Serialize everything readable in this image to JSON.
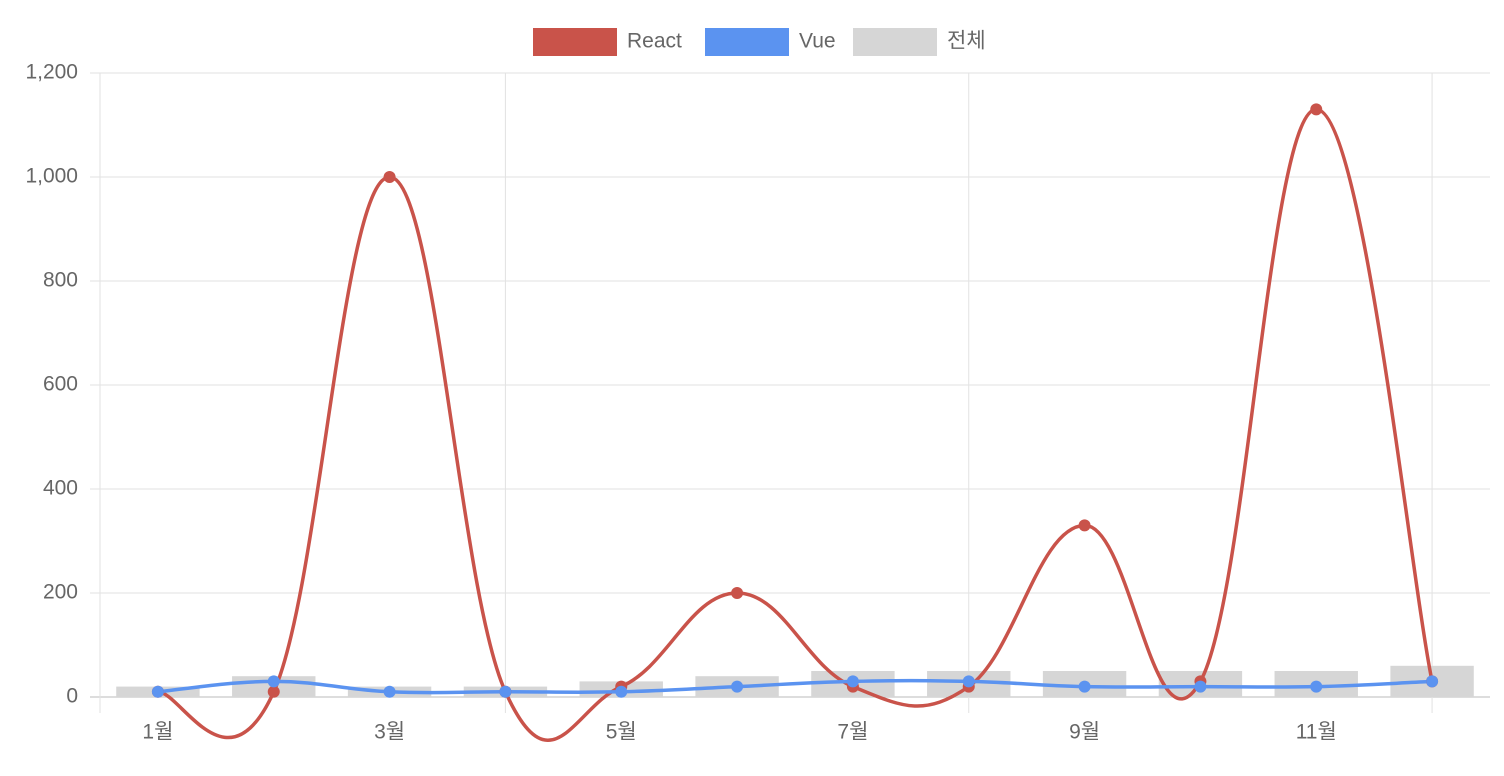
{
  "chart_data": {
    "type": "bar-line",
    "categories": [
      "1월",
      null,
      "3월",
      null,
      "5월",
      null,
      "7월",
      null,
      "9월",
      null,
      "11월",
      null
    ],
    "series": [
      {
        "name": "React",
        "type": "line",
        "color": "#c9534a",
        "values": [
          10,
          10,
          1000,
          10,
          20,
          200,
          20,
          20,
          330,
          30,
          1130,
          30
        ]
      },
      {
        "name": "Vue",
        "type": "line",
        "color": "#5b93f0",
        "values": [
          10,
          30,
          10,
          10,
          10,
          20,
          30,
          30,
          20,
          20,
          20,
          30
        ]
      },
      {
        "name": "전체",
        "type": "bar",
        "color": "#d6d6d6",
        "values": [
          20,
          40,
          20,
          20,
          30,
          40,
          50,
          50,
          50,
          50,
          50,
          60
        ]
      }
    ],
    "ylim": [
      0,
      1200
    ],
    "yticks": [
      0,
      200,
      400,
      600,
      800,
      {
        "value": 1000,
        "label": "1,000"
      },
      {
        "value": 1200,
        "label": "1,200"
      }
    ],
    "grid": true,
    "legend": "top"
  }
}
